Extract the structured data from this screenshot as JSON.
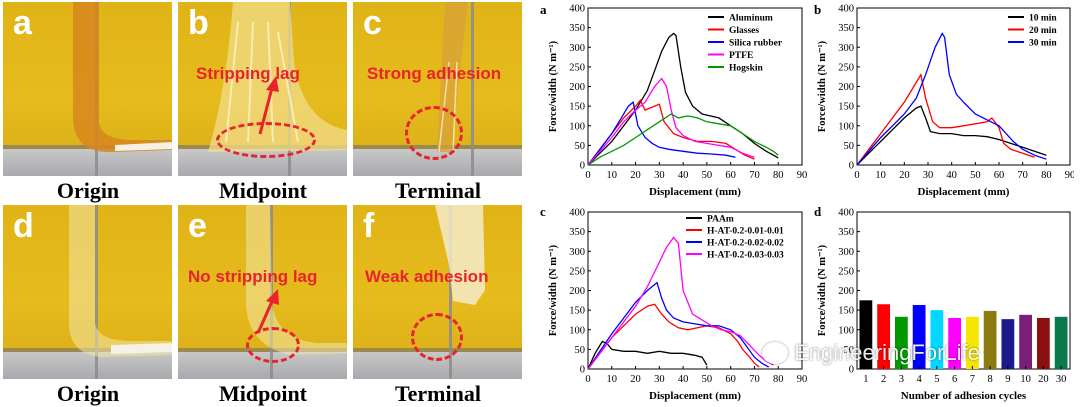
{
  "photos": {
    "a": {
      "letter": "a",
      "caption": "Origin",
      "callout": ""
    },
    "b": {
      "letter": "b",
      "caption": "Midpoint",
      "callout": "Stripping lag"
    },
    "c": {
      "letter": "c",
      "caption": "Terminal",
      "callout": "Strong adhesion"
    },
    "d": {
      "letter": "d",
      "caption": "Origin",
      "callout": ""
    },
    "e": {
      "letter": "e",
      "caption": "Midpoint",
      "callout": "No stripping lag"
    },
    "f": {
      "letter": "f",
      "caption": "Terminal",
      "callout": "Weak adhesion"
    }
  },
  "chart_labels": {
    "a": "a",
    "b": "b",
    "c": "c",
    "d": "d"
  },
  "watermark": "EngineeringForLife",
  "chart_data": [
    {
      "panel": "a",
      "type": "line",
      "xlabel": "Displacement (mm)",
      "ylabel": "Force/width (N m⁻¹)",
      "xlim": [
        0,
        90
      ],
      "ylim": [
        0,
        400
      ],
      "xticks": [
        0,
        10,
        20,
        30,
        40,
        50,
        60,
        70,
        80,
        90
      ],
      "yticks": [
        0,
        50,
        100,
        150,
        200,
        250,
        300,
        350,
        400
      ],
      "legend_position": "top-right",
      "series": [
        {
          "name": "Aluminum",
          "color": "#000000",
          "points": [
            [
              0,
              0
            ],
            [
              5,
              30
            ],
            [
              10,
              60
            ],
            [
              15,
              100
            ],
            [
              20,
              140
            ],
            [
              25,
              190
            ],
            [
              28,
              240
            ],
            [
              31,
              290
            ],
            [
              34,
              325
            ],
            [
              36,
              335
            ],
            [
              37,
              330
            ],
            [
              39,
              250
            ],
            [
              41,
              185
            ],
            [
              44,
              150
            ],
            [
              48,
              130
            ],
            [
              55,
              120
            ],
            [
              60,
              100
            ],
            [
              65,
              80
            ],
            [
              70,
              55
            ],
            [
              75,
              35
            ],
            [
              78,
              25
            ],
            [
              80,
              18
            ]
          ]
        },
        {
          "name": "Glasses",
          "color": "#ff0000",
          "points": [
            [
              0,
              0
            ],
            [
              5,
              40
            ],
            [
              10,
              80
            ],
            [
              15,
              120
            ],
            [
              20,
              150
            ],
            [
              22,
              165
            ],
            [
              24,
              140
            ],
            [
              26,
              145
            ],
            [
              28,
              150
            ],
            [
              30,
              155
            ],
            [
              32,
              110
            ],
            [
              36,
              80
            ],
            [
              40,
              70
            ],
            [
              46,
              60
            ],
            [
              52,
              60
            ],
            [
              58,
              55
            ],
            [
              62,
              40
            ],
            [
              66,
              25
            ],
            [
              70,
              15
            ]
          ]
        },
        {
          "name": "Silica rubber",
          "color": "#0000ff",
          "points": [
            [
              0,
              0
            ],
            [
              5,
              40
            ],
            [
              10,
              80
            ],
            [
              14,
              120
            ],
            [
              17,
              150
            ],
            [
              19,
              160
            ],
            [
              21,
              100
            ],
            [
              24,
              70
            ],
            [
              27,
              55
            ],
            [
              30,
              45
            ],
            [
              34,
              40
            ],
            [
              40,
              35
            ],
            [
              46,
              30
            ],
            [
              52,
              28
            ],
            [
              58,
              25
            ],
            [
              62,
              20
            ]
          ]
        },
        {
          "name": "PTFE",
          "color": "#ff00ff",
          "points": [
            [
              0,
              0
            ],
            [
              5,
              35
            ],
            [
              10,
              70
            ],
            [
              15,
              110
            ],
            [
              20,
              140
            ],
            [
              24,
              160
            ],
            [
              28,
              200
            ],
            [
              31,
              220
            ],
            [
              33,
              200
            ],
            [
              35,
              140
            ],
            [
              37,
              95
            ],
            [
              40,
              75
            ],
            [
              45,
              60
            ],
            [
              50,
              55
            ],
            [
              55,
              50
            ],
            [
              60,
              45
            ],
            [
              65,
              30
            ],
            [
              70,
              20
            ]
          ]
        },
        {
          "name": "Hogskin",
          "color": "#009900",
          "points": [
            [
              0,
              0
            ],
            [
              5,
              20
            ],
            [
              10,
              35
            ],
            [
              15,
              50
            ],
            [
              20,
              70
            ],
            [
              25,
              90
            ],
            [
              30,
              110
            ],
            [
              35,
              130
            ],
            [
              38,
              120
            ],
            [
              42,
              125
            ],
            [
              46,
              120
            ],
            [
              50,
              110
            ],
            [
              55,
              105
            ],
            [
              60,
              100
            ],
            [
              65,
              80
            ],
            [
              70,
              60
            ],
            [
              75,
              45
            ],
            [
              78,
              35
            ],
            [
              80,
              25
            ]
          ]
        }
      ]
    },
    {
      "panel": "b",
      "type": "line",
      "xlabel": "Displacement (mm)",
      "ylabel": "Force/width (N m⁻¹)",
      "xlim": [
        0,
        90
      ],
      "ylim": [
        0,
        400
      ],
      "xticks": [
        0,
        10,
        20,
        30,
        40,
        50,
        60,
        70,
        80,
        90
      ],
      "yticks": [
        0,
        50,
        100,
        150,
        200,
        250,
        300,
        350,
        400
      ],
      "legend_position": "top-right",
      "series": [
        {
          "name": "10 min",
          "color": "#000000",
          "points": [
            [
              0,
              0
            ],
            [
              5,
              30
            ],
            [
              10,
              60
            ],
            [
              15,
              90
            ],
            [
              20,
              120
            ],
            [
              25,
              145
            ],
            [
              27,
              150
            ],
            [
              29,
              120
            ],
            [
              31,
              85
            ],
            [
              35,
              80
            ],
            [
              40,
              80
            ],
            [
              45,
              75
            ],
            [
              50,
              75
            ],
            [
              55,
              72
            ],
            [
              60,
              65
            ],
            [
              65,
              55
            ],
            [
              70,
              45
            ],
            [
              75,
              35
            ],
            [
              80,
              25
            ]
          ]
        },
        {
          "name": "20 min",
          "color": "#ff0000",
          "points": [
            [
              0,
              0
            ],
            [
              5,
              40
            ],
            [
              10,
              80
            ],
            [
              15,
              120
            ],
            [
              20,
              160
            ],
            [
              24,
              200
            ],
            [
              27,
              230
            ],
            [
              29,
              170
            ],
            [
              32,
              110
            ],
            [
              35,
              95
            ],
            [
              40,
              95
            ],
            [
              45,
              100
            ],
            [
              50,
              105
            ],
            [
              55,
              110
            ],
            [
              57,
              120
            ],
            [
              60,
              95
            ],
            [
              62,
              55
            ],
            [
              65,
              40
            ],
            [
              70,
              30
            ],
            [
              75,
              20
            ]
          ]
        },
        {
          "name": "30 min",
          "color": "#0000ff",
          "points": [
            [
              0,
              0
            ],
            [
              5,
              35
            ],
            [
              10,
              70
            ],
            [
              15,
              100
            ],
            [
              20,
              130
            ],
            [
              25,
              170
            ],
            [
              29,
              230
            ],
            [
              33,
              300
            ],
            [
              36,
              335
            ],
            [
              37,
              325
            ],
            [
              39,
              230
            ],
            [
              42,
              180
            ],
            [
              45,
              160
            ],
            [
              50,
              130
            ],
            [
              55,
              115
            ],
            [
              60,
              100
            ],
            [
              63,
              80
            ],
            [
              66,
              60
            ],
            [
              70,
              40
            ],
            [
              75,
              25
            ],
            [
              80,
              15
            ]
          ]
        }
      ]
    },
    {
      "panel": "c",
      "type": "line",
      "xlabel": "Displacement (mm)",
      "ylabel": "Force/width (N m⁻¹)",
      "xlim": [
        0,
        90
      ],
      "ylim": [
        0,
        400
      ],
      "xticks": [
        0,
        10,
        20,
        30,
        40,
        50,
        60,
        70,
        80,
        90
      ],
      "yticks": [
        0,
        50,
        100,
        150,
        200,
        250,
        300,
        350,
        400
      ],
      "legend_position": "top-right",
      "series": [
        {
          "name": "PAAm",
          "color": "#000000",
          "points": [
            [
              0,
              0
            ],
            [
              3,
              40
            ],
            [
              6,
              70
            ],
            [
              8,
              65
            ],
            [
              10,
              50
            ],
            [
              15,
              45
            ],
            [
              20,
              45
            ],
            [
              25,
              40
            ],
            [
              30,
              45
            ],
            [
              35,
              40
            ],
            [
              40,
              40
            ],
            [
              45,
              35
            ],
            [
              48,
              30
            ],
            [
              50,
              10
            ]
          ]
        },
        {
          "name": "H-AT-0.2-0.01-0.01",
          "color": "#ff0000",
          "points": [
            [
              0,
              0
            ],
            [
              5,
              40
            ],
            [
              10,
              80
            ],
            [
              15,
              110
            ],
            [
              20,
              140
            ],
            [
              25,
              160
            ],
            [
              28,
              165
            ],
            [
              31,
              140
            ],
            [
              34,
              120
            ],
            [
              38,
              105
            ],
            [
              42,
              100
            ],
            [
              46,
              105
            ],
            [
              50,
              110
            ],
            [
              55,
              105
            ],
            [
              60,
              90
            ],
            [
              63,
              70
            ],
            [
              65,
              50
            ],
            [
              68,
              30
            ],
            [
              70,
              15
            ],
            [
              72,
              5
            ]
          ]
        },
        {
          "name": "H-AT-0.2-0.02-0.02",
          "color": "#0000ff",
          "points": [
            [
              0,
              0
            ],
            [
              5,
              45
            ],
            [
              10,
              90
            ],
            [
              15,
              130
            ],
            [
              20,
              170
            ],
            [
              25,
              200
            ],
            [
              29,
              220
            ],
            [
              31,
              180
            ],
            [
              33,
              150
            ],
            [
              36,
              130
            ],
            [
              40,
              120
            ],
            [
              45,
              115
            ],
            [
              50,
              110
            ],
            [
              55,
              110
            ],
            [
              60,
              100
            ],
            [
              64,
              80
            ],
            [
              67,
              55
            ],
            [
              70,
              30
            ],
            [
              73,
              15
            ],
            [
              76,
              5
            ]
          ]
        },
        {
          "name": "H-AT-0.2-0.03-0.03",
          "color": "#ff00ff",
          "points": [
            [
              0,
              0
            ],
            [
              5,
              40
            ],
            [
              10,
              80
            ],
            [
              15,
              120
            ],
            [
              20,
              160
            ],
            [
              25,
              210
            ],
            [
              29,
              260
            ],
            [
              33,
              310
            ],
            [
              36,
              335
            ],
            [
              38,
              320
            ],
            [
              40,
              200
            ],
            [
              44,
              140
            ],
            [
              48,
              125
            ],
            [
              52,
              110
            ],
            [
              56,
              100
            ],
            [
              60,
              95
            ],
            [
              64,
              85
            ],
            [
              68,
              60
            ],
            [
              72,
              35
            ],
            [
              75,
              20
            ],
            [
              78,
              10
            ]
          ]
        }
      ]
    },
    {
      "panel": "d",
      "type": "bar",
      "xlabel": "Number of adhesion cycles",
      "ylabel": "Force/width (N m⁻¹)",
      "ylim": [
        0,
        400
      ],
      "yticks": [
        0,
        50,
        100,
        150,
        200,
        250,
        300,
        350,
        400
      ],
      "categories": [
        "1",
        "2",
        "3",
        "4",
        "5",
        "6",
        "7",
        "8",
        "9",
        "10",
        "20",
        "30"
      ],
      "values": [
        175,
        165,
        133,
        163,
        150,
        130,
        133,
        148,
        127,
        138,
        130,
        133
      ],
      "colors": [
        "#000000",
        "#ff0000",
        "#009900",
        "#0000ff",
        "#00d8ff",
        "#ff00ff",
        "#f4e600",
        "#8b7a10",
        "#1a1a8c",
        "#7a1e7a",
        "#8b1010",
        "#0a7a4a"
      ]
    }
  ]
}
